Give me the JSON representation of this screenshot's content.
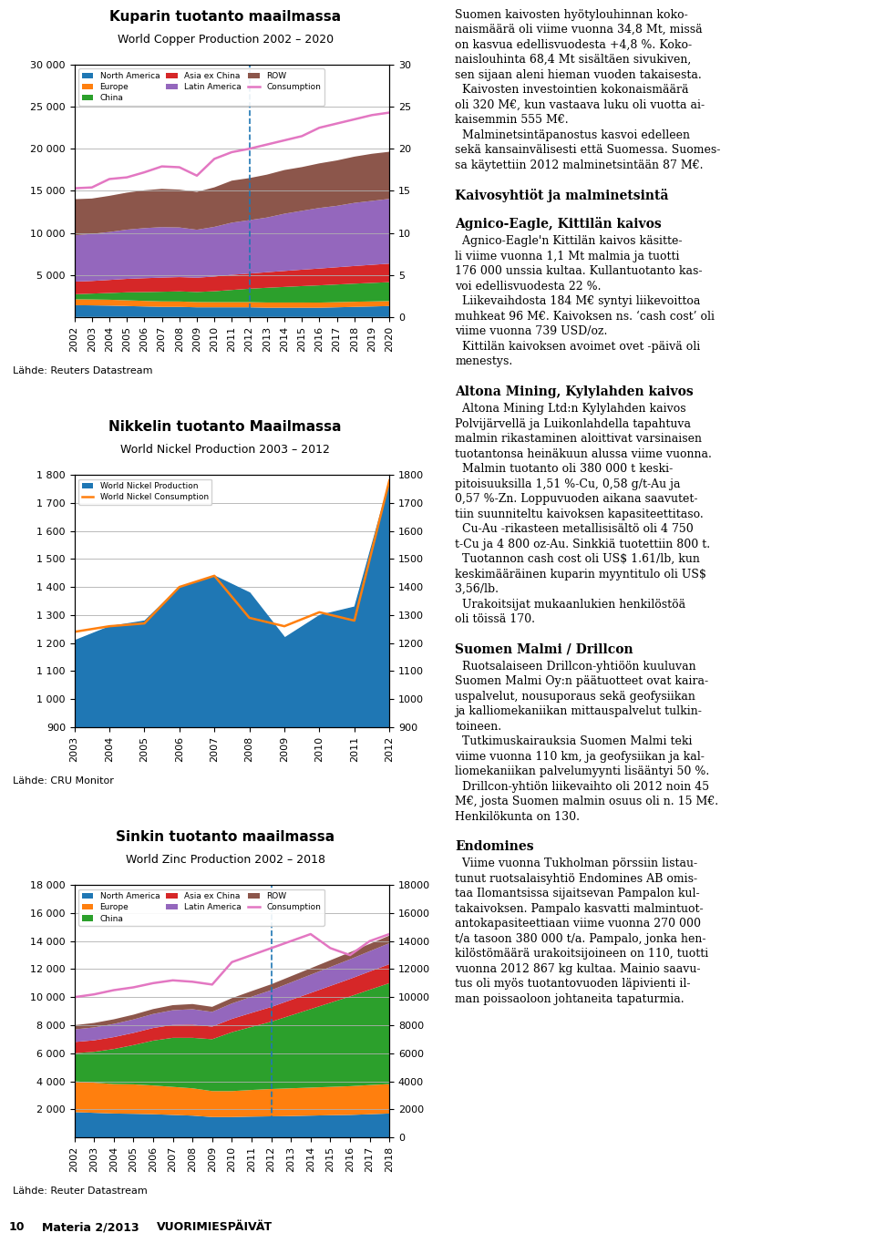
{
  "chart_data": [
    {
      "type": "area",
      "title": "Kuparin tuotanto maailmassa",
      "subtitle": "World Copper Production 2002 – 2020",
      "annotations": [
        "Lähde: Reuters Datastream"
      ],
      "x": [
        2002,
        2003,
        2004,
        2005,
        2006,
        2007,
        2008,
        2009,
        2010,
        2011,
        2012,
        2013,
        2014,
        2015,
        2016,
        2017,
        2018,
        2019,
        2020
      ],
      "stacked": true,
      "series": [
        {
          "name": "North America",
          "type": "area",
          "color": "#1f77b4",
          "values": [
            1400,
            1380,
            1350,
            1300,
            1250,
            1200,
            1200,
            1150,
            1150,
            1150,
            1150,
            1100,
            1100,
            1100,
            1100,
            1150,
            1200,
            1250,
            1300
          ]
        },
        {
          "name": "Europe",
          "type": "area",
          "color": "#ff7f0e",
          "values": [
            700,
            700,
            700,
            680,
            660,
            650,
            640,
            620,
            610,
            610,
            610,
            620,
            620,
            620,
            610,
            610,
            610,
            600,
            590
          ]
        },
        {
          "name": "China",
          "type": "area",
          "color": "#2ca02c",
          "values": [
            600,
            700,
            800,
            950,
            1050,
            1150,
            1200,
            1200,
            1300,
            1450,
            1600,
            1750,
            1850,
            1950,
            2050,
            2100,
            2150,
            2200,
            2250
          ]
        },
        {
          "name": "Asia ex China",
          "type": "area",
          "color": "#d62728",
          "values": [
            1500,
            1500,
            1550,
            1600,
            1650,
            1680,
            1700,
            1700,
            1750,
            1800,
            1800,
            1850,
            1900,
            1950,
            2000,
            2050,
            2100,
            2150,
            2200
          ]
        },
        {
          "name": "Latin America",
          "type": "area",
          "color": "#9467bd",
          "values": [
            5500,
            5600,
            5700,
            5850,
            5950,
            6000,
            5900,
            5700,
            5900,
            6200,
            6350,
            6500,
            6800,
            7000,
            7200,
            7300,
            7500,
            7600,
            7700
          ]
        },
        {
          "name": "ROW",
          "type": "area",
          "color": "#8c564b",
          "values": [
            4300,
            4200,
            4300,
            4400,
            4500,
            4550,
            4500,
            4500,
            4700,
            5000,
            5000,
            5100,
            5200,
            5200,
            5300,
            5400,
            5500,
            5600,
            5600
          ]
        },
        {
          "name": "Consumption",
          "type": "line",
          "color": "#e377c2",
          "values": [
            15300,
            15400,
            16400,
            16600,
            17200,
            17900,
            17800,
            16800,
            18800,
            19600,
            20000,
            20500,
            21000,
            21500,
            22500,
            23000,
            23500,
            24000,
            24300
          ]
        }
      ],
      "vline_x": 2012,
      "xlim": [
        2002,
        2020
      ],
      "xticks": [
        2002,
        2003,
        2004,
        2005,
        2006,
        2007,
        2008,
        2009,
        2010,
        2011,
        2012,
        2013,
        2014,
        2015,
        2016,
        2017,
        2018,
        2019,
        2020
      ],
      "ylim": [
        0,
        30000
      ],
      "yticks": [
        {
          "value": 5000,
          "label": "5 000"
        },
        {
          "value": 10000,
          "label": "10 000"
        },
        {
          "value": 15000,
          "label": "15 000"
        },
        {
          "value": 20000,
          "label": "20 000"
        },
        {
          "value": 25000,
          "label": "25 000"
        },
        {
          "value": 30000,
          "label": "30 000"
        }
      ],
      "y2lim": [
        0,
        30
      ],
      "y2ticks": [
        0,
        5,
        10,
        15,
        20,
        25,
        30
      ],
      "grid": "y",
      "legend": "upper left"
    },
    {
      "type": "area",
      "title": "Nikkelin tuotanto Maailmassa",
      "subtitle": "World Nickel Production 2003 – 2012",
      "annotations": [
        "Lähde: CRU Monitor"
      ],
      "x": [
        2003,
        2004,
        2005,
        2006,
        2007,
        2008,
        2009,
        2010,
        2011,
        2012
      ],
      "series": [
        {
          "name": "World Nickel Production",
          "type": "area",
          "color": "#1f77b4",
          "values": [
            1210,
            1260,
            1280,
            1400,
            1440,
            1380,
            1220,
            1300,
            1330,
            1780
          ]
        },
        {
          "name": "World Nickel Consumption",
          "type": "line",
          "color": "#ff7f0e",
          "values": [
            1240,
            1260,
            1270,
            1400,
            1440,
            1290,
            1260,
            1310,
            1280,
            1780
          ]
        }
      ],
      "xlim": [
        2003,
        2012
      ],
      "xticks": [
        2003,
        2004,
        2005,
        2006,
        2007,
        2008,
        2009,
        2010,
        2011,
        2012
      ],
      "ylim": [
        900,
        1800
      ],
      "yticks": [
        900,
        {
          "value": 1000,
          "label": "1 000"
        },
        {
          "value": 1100,
          "label": "1 100"
        },
        {
          "value": 1200,
          "label": "1 200"
        },
        {
          "value": 1300,
          "label": "1 300"
        },
        {
          "value": 1400,
          "label": "1 400"
        },
        {
          "value": 1500,
          "label": "1 500"
        },
        {
          "value": 1600,
          "label": "1 600"
        },
        {
          "value": 1700,
          "label": "1 700"
        },
        {
          "value": 1800,
          "label": "1 800"
        }
      ],
      "y2lim": [
        900,
        1800
      ],
      "y2ticks": [
        900,
        1000,
        1100,
        1200,
        1300,
        1400,
        1500,
        1600,
        1700,
        1800
      ],
      "grid": "y",
      "legend": "upper left"
    },
    {
      "type": "area",
      "title": "Sinkin tuotanto maailmassa",
      "subtitle": "World Zinc Production 2002 – 2018",
      "annotations": [
        "Lähde: Reuter Datastream"
      ],
      "x": [
        2002,
        2003,
        2004,
        2005,
        2006,
        2007,
        2008,
        2009,
        2010,
        2011,
        2012,
        2013,
        2014,
        2015,
        2016,
        2017,
        2018
      ],
      "stacked": true,
      "series": [
        {
          "name": "North America",
          "type": "area",
          "color": "#1f77b4",
          "values": [
            1800,
            1750,
            1700,
            1680,
            1650,
            1600,
            1550,
            1450,
            1450,
            1480,
            1500,
            1520,
            1550,
            1580,
            1600,
            1650,
            1700
          ]
        },
        {
          "name": "Europe",
          "type": "area",
          "color": "#ff7f0e",
          "values": [
            2200,
            2150,
            2100,
            2100,
            2050,
            2000,
            1950,
            1850,
            1850,
            1900,
            1950,
            1980,
            2000,
            2020,
            2050,
            2080,
            2100
          ]
        },
        {
          "name": "China",
          "type": "area",
          "color": "#2ca02c",
          "values": [
            2000,
            2200,
            2500,
            2800,
            3200,
            3500,
            3600,
            3700,
            4200,
            4500,
            4800,
            5200,
            5600,
            6000,
            6400,
            6800,
            7200
          ]
        },
        {
          "name": "Asia ex China",
          "type": "area",
          "color": "#d62728",
          "values": [
            800,
            820,
            850,
            870,
            900,
            920,
            940,
            900,
            950,
            1000,
            1050,
            1100,
            1150,
            1200,
            1250,
            1300,
            1350
          ]
        },
        {
          "name": "Latin America",
          "type": "area",
          "color": "#9467bd",
          "values": [
            900,
            920,
            940,
            960,
            1000,
            1050,
            1100,
            1050,
            1100,
            1150,
            1200,
            1250,
            1300,
            1350,
            1400,
            1450,
            1500
          ]
        },
        {
          "name": "ROW",
          "type": "area",
          "color": "#8c564b",
          "values": [
            300,
            320,
            330,
            340,
            350,
            360,
            370,
            360,
            380,
            400,
            420,
            440,
            460,
            480,
            500,
            520,
            540
          ]
        },
        {
          "name": "Consumption",
          "type": "line",
          "color": "#e377c2",
          "values": [
            10000,
            10200,
            10500,
            10700,
            11000,
            11200,
            11100,
            10900,
            12500,
            13000,
            13500,
            14000,
            14500,
            13500,
            13000,
            14000,
            14500
          ]
        }
      ],
      "vline_x": 2012,
      "xlim": [
        2002,
        2018
      ],
      "xticks": [
        2002,
        2003,
        2004,
        2005,
        2006,
        2007,
        2008,
        2009,
        2010,
        2011,
        2012,
        2013,
        2014,
        2015,
        2016,
        2017,
        2018
      ],
      "ylim": [
        0,
        18000
      ],
      "yticks": [
        {
          "value": 2000,
          "label": "2 000"
        },
        {
          "value": 4000,
          "label": "4 000"
        },
        {
          "value": 6000,
          "label": "6 000"
        },
        {
          "value": 8000,
          "label": "8 000"
        },
        {
          "value": 10000,
          "label": "10 000"
        },
        {
          "value": 12000,
          "label": "12 000"
        },
        {
          "value": 14000,
          "label": "14 000"
        },
        {
          "value": 16000,
          "label": "16 000"
        },
        {
          "value": 18000,
          "label": "18 000"
        }
      ],
      "y2lim": [
        0,
        18000
      ],
      "y2ticks": [
        0,
        2000,
        4000,
        6000,
        8000,
        10000,
        12000,
        14000,
        16000,
        18000
      ],
      "grid": "y",
      "legend": "upper left"
    }
  ],
  "annotations": [
    "Suomen kaivosten hyötylouhinnan koko-\nnaismäärä oli viime vuonna 34,8 Mt, missä\non kasvua edellisvuodesta +4,8 %. Koko-\nnaislouhinta 68,4 Mt sisältäen sivukiven,\nsen sijaan aleni hieman vuoden takaisesta.\n  Kaivosten investointien kokonaismäärä\noli 320 M€, kun vastaava luku oli vuotta ai-\nkaisemmin 555 M€.\n  Malminetsintäpanostus kasvoi edelleen\nsekä kansainvälisesti että Suomessa. Suomes-\nsa käytettiin 2012 malminetsintään 87 M€.",
    "Kaivosyhtiöt ja malminetsintä",
    "Agnico-Eagle, Kittilän kaivos",
    "  Agnico-Eagle'n Kittilän kaivos käsitte-\nli viime vuonna 1,1 Mt malmia ja tuotti\n176 000 unssia kultaa. Kullantuotanto kas-\nvoi edellisvuodesta 22 %.\n  Liikevaihdosta 184 M€ syntyi liikevoittoa\nmuhkeat 96 M€. Kaivoksen ns. ‘cash cost’ oli\nviime vuonna 739 USD/oz.\n  Kittilän kaivoksen avoimet ovet -päivä oli\nmenestys.",
    "Altona Mining, Kylylahden kaivos",
    "  Altona Mining Ltd:n Kylylahden kaivos\nPolvijärvellä ja Luikonlahdella tapahtuva\nmalmin rikastaminen aloittivat varsinaisen\ntuotantonsa heinäkuun alussa viime vuonna.\n  Malmin tuotanto oli 380 000 t keski-\npitoisuuksilla 1,51 %-Cu, 0,58 g/t-Au ja\n0,57 %-Zn. Loppuvuoden aikana saavutet-\ntiin suunniteltu kaivoksen kapasiteettitaso.\n  Cu-Au -rikasteen metallisisältö oli 4 750\nt-Cu ja 4 800 oz-Au. Sinkkiä tuotettiin 800 t.\n  Tuotannon cash cost oli US$ 1.61/lb, kun\nkeskimääräinen kuparin myyntitulo oli US$\n3,56/lb.\n  Urakoitsijat mukaanlukien henkilöstöä\noli töissä 170.",
    "Suomen Malmi / Drillcon",
    "  Ruotsalaiseen Drillcon-yhtiöön kuuluvan\nSuomen Malmi Oy:n päätuotteet ovat kaira-\nuspalvelut, nousuporaus sekä geofysiikan\nja kalliomekaniikan mittauspalvelut tulkin-\ntoineen.\n  Tutkimuskairauksia Suomen Malmi teki\nviime vuonna 110 km, ja geofysiikan ja kal-\nliomekaniikan palvelumyynti lisääntyi 50 %.\n  Drillcon-yhtiön liikevaihto oli 2012 noin 45\nM€, josta Suomen malmin osuus oli n. 15 M€.\nHenkilökunta on 130.",
    "Endomines",
    "  Viime vuonna Tukholman pörssiin listau-\ntunut ruotsalaisyhtiö Endomines AB omis-\ntaa Ilomantsissa sijaitsevan Pampalon kul-\ntakaivoksen. Pampalo kasvatti malmintuot-\nantokapasiteettiaan viime vuonna 270 000\nt/a tasoon 380 000 t/a. Pampalo, jonka hen-\nkilöstömäärä urakoitsijoineen on 110, tuotti\nvuonna 2012 867 kg kultaa. Mainio saavu-\ntus oli myös tuotantovuoden läpivienti il-\nman poissaoloon johtaneita tapaturmia."
  ],
  "footer": [
    "10",
    "Materia 2/2013",
    "VUORIMIESPÄIVÄT"
  ]
}
